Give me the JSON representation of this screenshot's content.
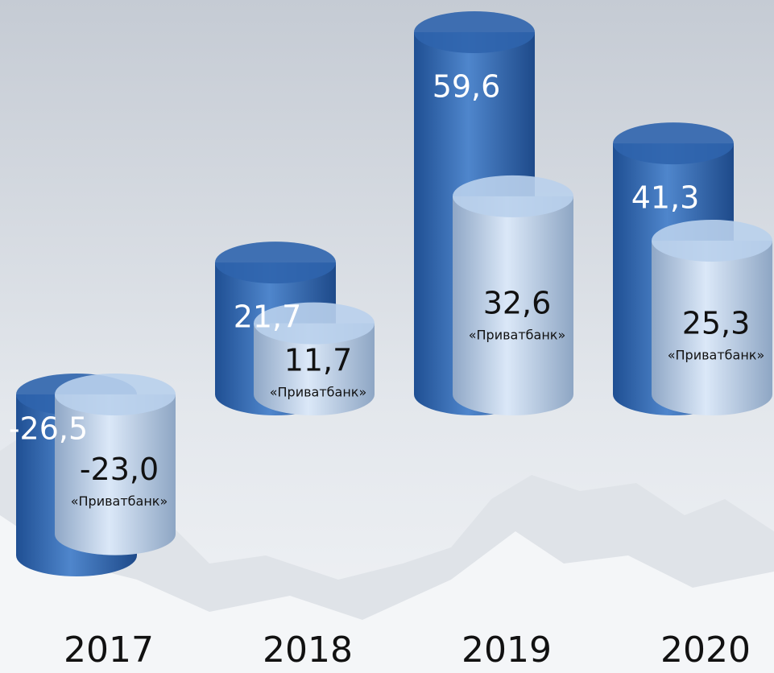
{
  "chart_data": {
    "type": "cylinder-bar",
    "categories": [
      "2017",
      "2018",
      "2019",
      "2020"
    ],
    "series": [
      {
        "color": "#2f64ad",
        "values": [
          -26.5,
          21.7,
          59.6,
          41.3
        ],
        "value_labels": [
          "-26,5",
          "21,7",
          "59,6",
          "41,3"
        ]
      },
      {
        "name": "«Приватбанк»",
        "color": "#b9d0ec",
        "values": [
          -23.0,
          11.7,
          32.6,
          25.3
        ],
        "value_labels": [
          "-23,0",
          "11,7",
          "32,6",
          "25,3"
        ]
      }
    ]
  }
}
